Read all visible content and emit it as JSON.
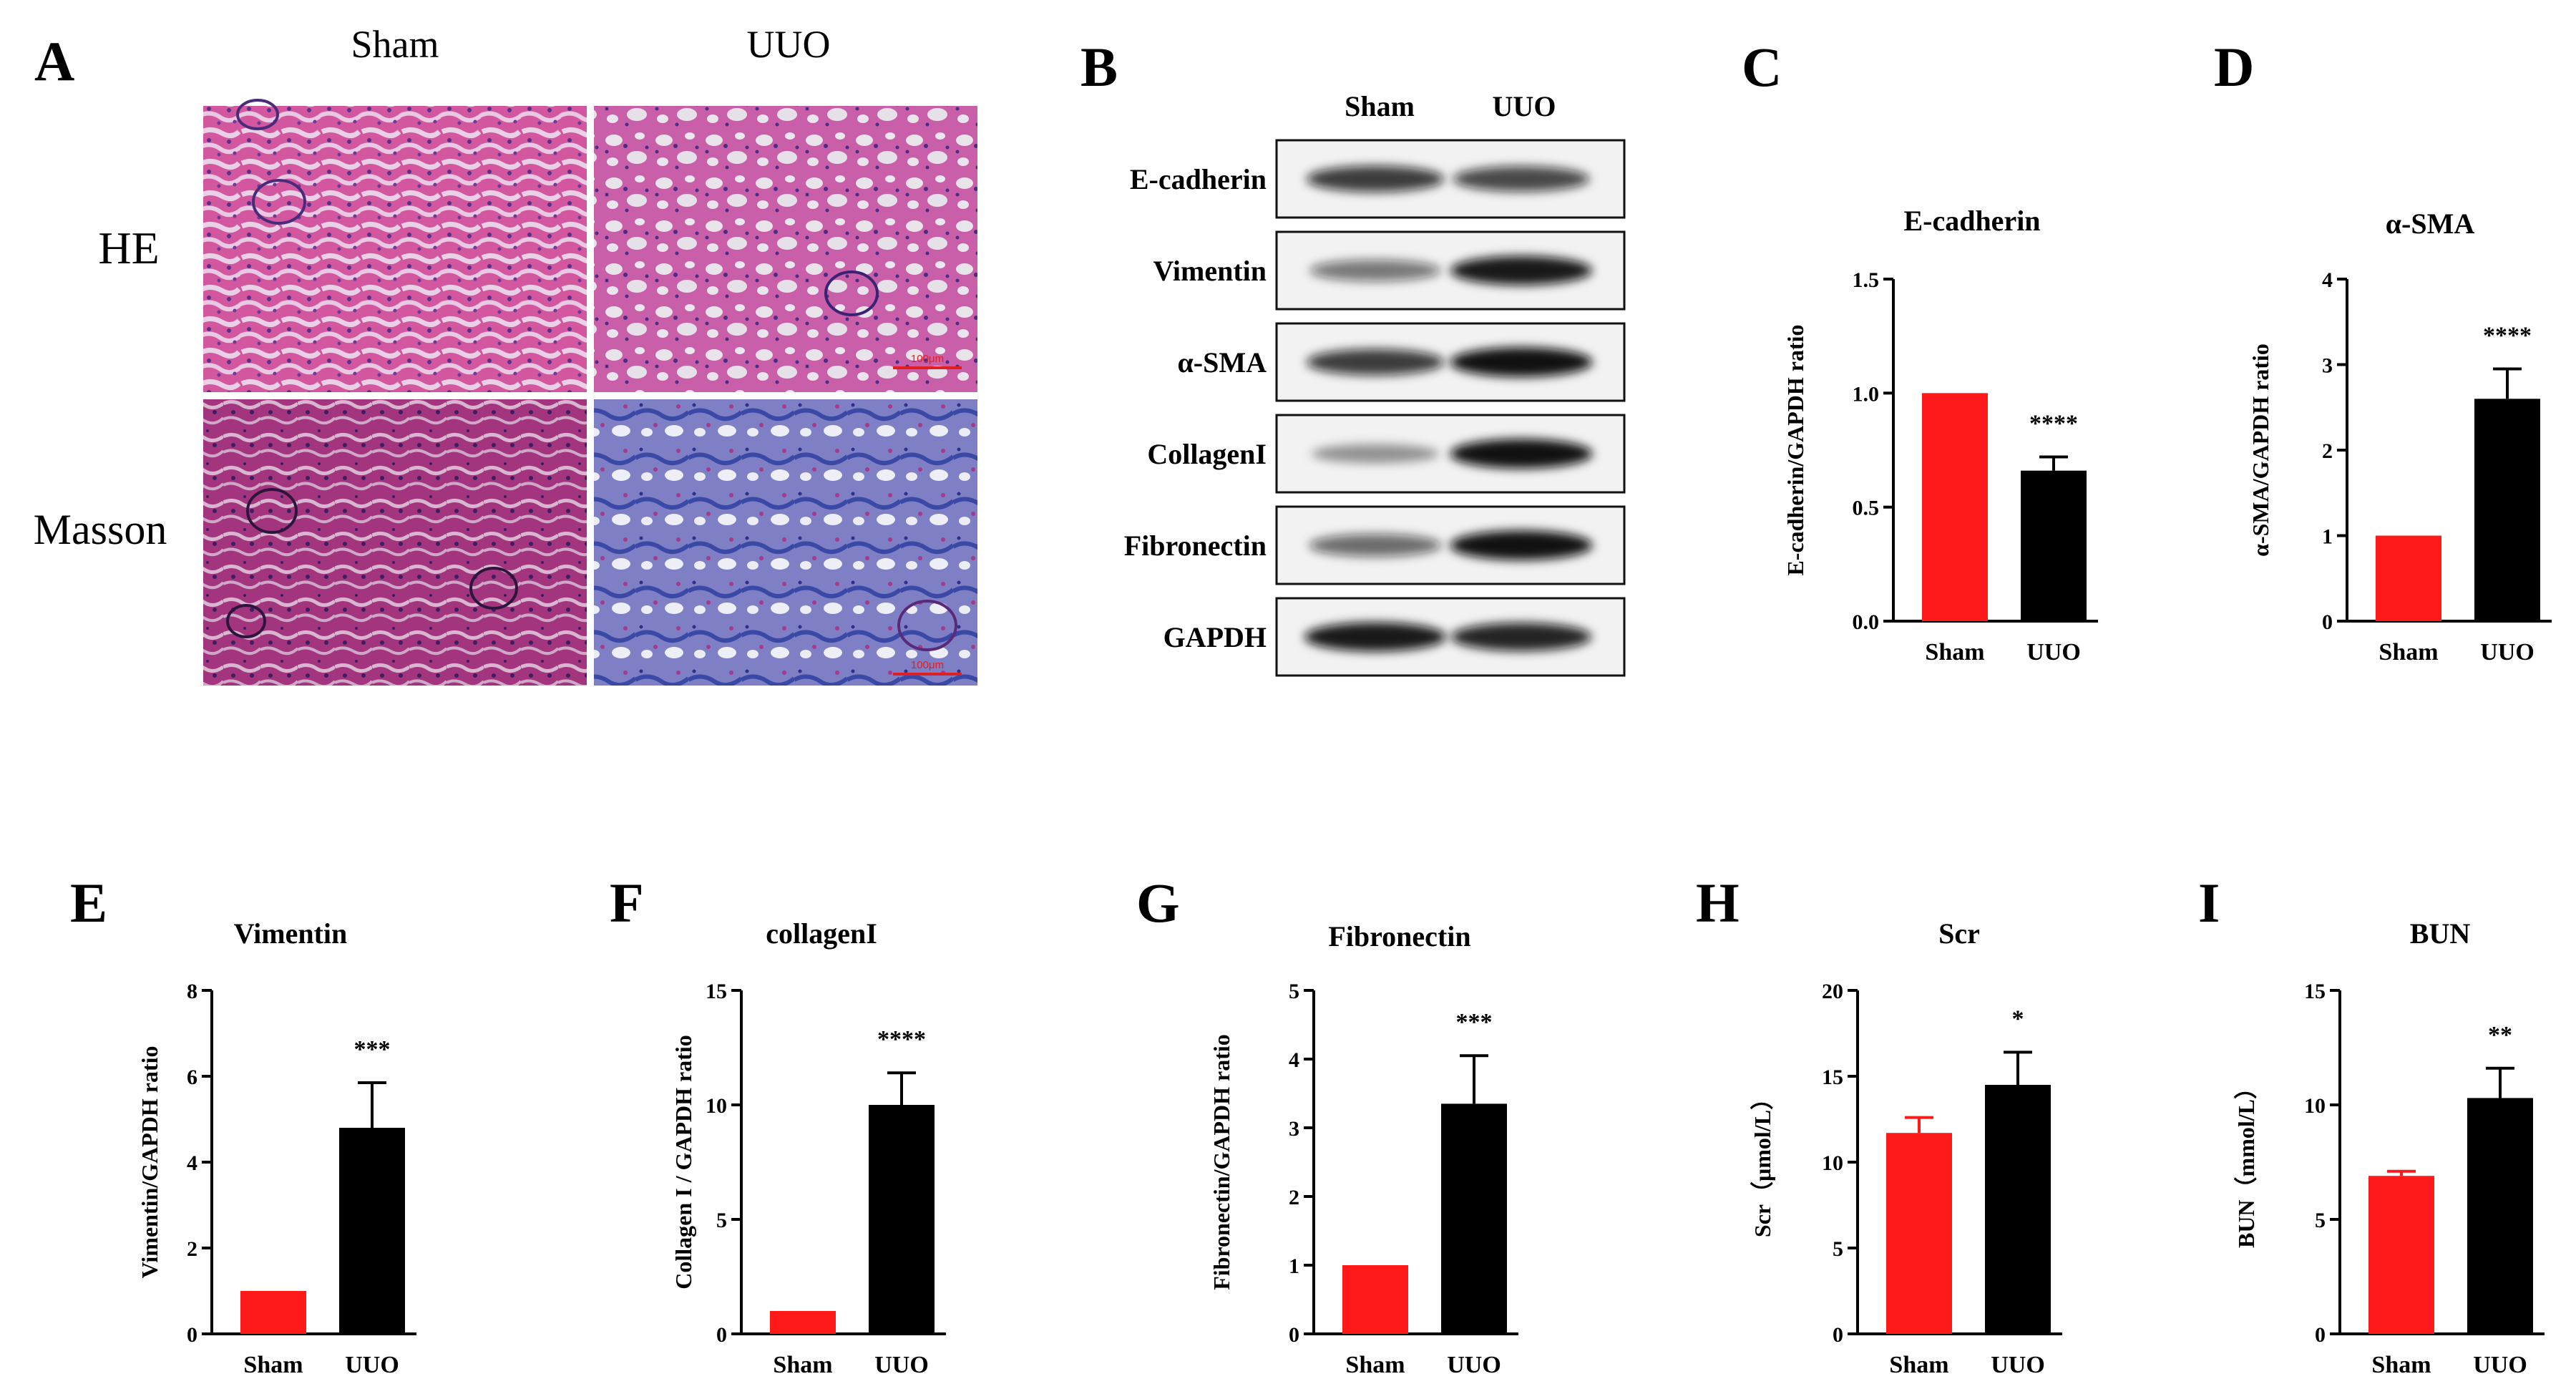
{
  "panel_letters": [
    "A",
    "B",
    "C",
    "D",
    "E",
    "F",
    "G",
    "H",
    "I"
  ],
  "histology": {
    "columns": [
      "Sham",
      "UUO"
    ],
    "rows": [
      "HE",
      "Masson"
    ],
    "scale_bar_label": "100μm"
  },
  "western_blot": {
    "columns": [
      "Sham",
      "UUO"
    ],
    "bands": [
      "E-cadherin",
      "Vimentin",
      "α-SMA",
      "CollagenI",
      "Fibronectin",
      "GAPDH"
    ]
  },
  "chart_data": [
    {
      "panel": "C",
      "type": "bar",
      "title": "E-cadherin",
      "ylabel": "E-cadherin/GAPDH ratio",
      "categories": [
        "Sham",
        "UUO"
      ],
      "values": [
        1.0,
        0.66
      ],
      "errors": [
        0,
        0.06
      ],
      "colors": [
        "#ff1a1a",
        "#000000"
      ],
      "ylim": [
        0,
        1.5
      ],
      "yticks": [
        "0.0",
        "0.5",
        "1.0",
        "1.5"
      ],
      "significance": "****"
    },
    {
      "panel": "D",
      "type": "bar",
      "title": "α-SMA",
      "ylabel": "α-SMA/GAPDH ratio",
      "categories": [
        "Sham",
        "UUO"
      ],
      "values": [
        1.0,
        2.6
      ],
      "errors": [
        0,
        0.35
      ],
      "colors": [
        "#ff1a1a",
        "#000000"
      ],
      "ylim": [
        0,
        4
      ],
      "yticks": [
        "0",
        "1",
        "2",
        "3",
        "4"
      ],
      "significance": "****"
    },
    {
      "panel": "E",
      "type": "bar",
      "title": "Vimentin",
      "ylabel": "Vimentin/GAPDH ratio",
      "categories": [
        "Sham",
        "UUO"
      ],
      "values": [
        1.0,
        4.8
      ],
      "errors": [
        0,
        1.05
      ],
      "colors": [
        "#ff1a1a",
        "#000000"
      ],
      "ylim": [
        0,
        8
      ],
      "yticks": [
        "0",
        "2",
        "4",
        "6",
        "8"
      ],
      "significance": "***"
    },
    {
      "panel": "F",
      "type": "bar",
      "title": "collagenI",
      "ylabel": "Collagen I / GAPDH ratio",
      "categories": [
        "Sham",
        "UUO"
      ],
      "values": [
        1.0,
        10.0
      ],
      "errors": [
        0,
        1.4
      ],
      "colors": [
        "#ff1a1a",
        "#000000"
      ],
      "ylim": [
        0,
        15
      ],
      "yticks": [
        "0",
        "5",
        "10",
        "15"
      ],
      "significance": "****"
    },
    {
      "panel": "G",
      "type": "bar",
      "title": "Fibronectin",
      "ylabel": "Fibronectin/GAPDH ratio",
      "categories": [
        "Sham",
        "UUO"
      ],
      "values": [
        1.0,
        3.35
      ],
      "errors": [
        0,
        0.7
      ],
      "colors": [
        "#ff1a1a",
        "#000000"
      ],
      "ylim": [
        0,
        5
      ],
      "yticks": [
        "0",
        "1",
        "2",
        "3",
        "4",
        "5"
      ],
      "significance": "***"
    },
    {
      "panel": "H",
      "type": "bar",
      "title": "Scr",
      "ylabel": "Scr（μmol/L）",
      "categories": [
        "Sham",
        "UUO"
      ],
      "values": [
        11.7,
        14.5
      ],
      "errors": [
        0.9,
        1.9
      ],
      "colors": [
        "#ff1a1a",
        "#000000"
      ],
      "ylim": [
        0,
        20
      ],
      "yticks": [
        "0",
        "5",
        "10",
        "15",
        "20"
      ],
      "significance": "*"
    },
    {
      "panel": "I",
      "type": "bar",
      "title": "BUN",
      "ylabel": "BUN（mmol/L）",
      "categories": [
        "Sham",
        "UUO"
      ],
      "values": [
        6.9,
        10.3
      ],
      "errors": [
        0.2,
        1.3
      ],
      "colors": [
        "#ff1a1a",
        "#000000"
      ],
      "ylim": [
        0,
        15
      ],
      "yticks": [
        "0",
        "5",
        "10",
        "15"
      ],
      "significance": "**"
    }
  ]
}
